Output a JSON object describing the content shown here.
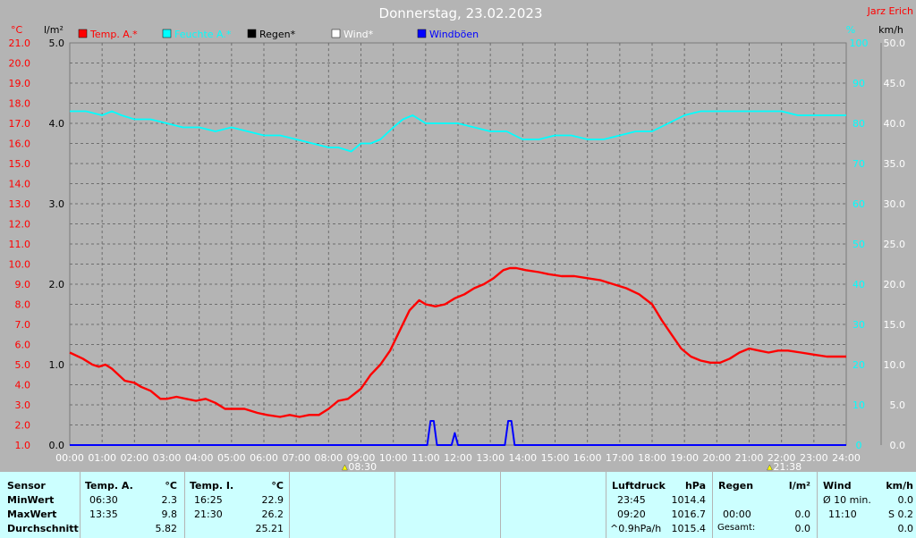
{
  "header": {
    "title": "Donnerstag, 23.02.2023",
    "station": "Jarz Erich"
  },
  "units": {
    "temp": "°C",
    "rain": "l/m²",
    "humidity": "%",
    "wind": "km/h"
  },
  "legend": [
    {
      "label": "Temp. A.*",
      "color": "#ff0000"
    },
    {
      "label": "Feuchte A.*",
      "color": "#00ffff"
    },
    {
      "label": "Regen*",
      "color": "#000000"
    },
    {
      "label": "Wind*",
      "color": "#ffffff"
    },
    {
      "label": "Windböen",
      "color": "#0000ff"
    }
  ],
  "axes": {
    "x_ticks": [
      "00:00",
      "01:00",
      "02:00",
      "03:00",
      "04:00",
      "05:00",
      "06:00",
      "07:00",
      "08:00",
      "09:00",
      "10:00",
      "11:00",
      "12:00",
      "13:00",
      "14:00",
      "15:00",
      "16:00",
      "17:00",
      "18:00",
      "19:00",
      "20:00",
      "21:00",
      "22:00",
      "23:00",
      "24:00"
    ],
    "temp_ticks": [
      "1.0",
      "2.0",
      "3.0",
      "4.0",
      "5.0",
      "6.0",
      "7.0",
      "8.0",
      "9.0",
      "10.0",
      "11.0",
      "12.0",
      "13.0",
      "14.0",
      "15.0",
      "16.0",
      "17.0",
      "18.0",
      "19.0",
      "20.0",
      "21.0"
    ],
    "rain_ticks": [
      "0.0",
      "1.0",
      "2.0",
      "3.0",
      "4.0",
      "5.0"
    ],
    "hum_ticks": [
      "0",
      "10",
      "20",
      "30",
      "40",
      "50",
      "60",
      "70",
      "80",
      "90",
      "100"
    ],
    "wind_ticks": [
      "0.0",
      "5.0",
      "10.0",
      "15.0",
      "20.0",
      "25.0",
      "30.0",
      "35.0",
      "40.0",
      "45.0",
      "50.0"
    ],
    "sunrise": "08:30",
    "sunset": "21:38"
  },
  "chart_data": {
    "type": "line",
    "title": "Donnerstag, 23.02.2023",
    "x_unit": "hour",
    "xlim": [
      0,
      24
    ],
    "ylim_temp": [
      1,
      21
    ],
    "ylim_rain": [
      0,
      5
    ],
    "ylim_hum": [
      0,
      100
    ],
    "ylim_wind": [
      0,
      50
    ],
    "grid": true,
    "series": [
      {
        "name": "Temp. A.*",
        "unit": "°C",
        "color": "#ff0000",
        "x": [
          0,
          0.4,
          0.7,
          0.9,
          1.1,
          1.3,
          1.5,
          1.7,
          2.0,
          2.2,
          2.5,
          2.8,
          3.0,
          3.3,
          3.6,
          3.9,
          4.2,
          4.5,
          4.8,
          5.1,
          5.4,
          5.8,
          6.1,
          6.5,
          6.8,
          7.1,
          7.4,
          7.7,
          8.0,
          8.3,
          8.6,
          9.0,
          9.3,
          9.6,
          9.9,
          10.2,
          10.5,
          10.8,
          11.0,
          11.3,
          11.6,
          11.9,
          12.2,
          12.5,
          12.8,
          13.1,
          13.4,
          13.6,
          13.8,
          14.1,
          14.5,
          14.8,
          15.2,
          15.6,
          16.0,
          16.4,
          16.8,
          17.2,
          17.6,
          18.0,
          18.3,
          18.6,
          18.9,
          19.2,
          19.5,
          19.8,
          20.1,
          20.4,
          20.7,
          21.0,
          21.3,
          21.6,
          21.9,
          22.2,
          22.6,
          23.0,
          23.4,
          23.7,
          24.0
        ],
        "values": [
          5.6,
          5.3,
          5.0,
          4.9,
          5.0,
          4.8,
          4.5,
          4.2,
          4.1,
          3.9,
          3.7,
          3.3,
          3.3,
          3.4,
          3.3,
          3.2,
          3.3,
          3.1,
          2.8,
          2.8,
          2.8,
          2.6,
          2.5,
          2.4,
          2.5,
          2.4,
          2.5,
          2.5,
          2.8,
          3.2,
          3.3,
          3.8,
          4.5,
          5.0,
          5.7,
          6.7,
          7.7,
          8.2,
          8.0,
          7.9,
          8.0,
          8.3,
          8.5,
          8.8,
          9.0,
          9.3,
          9.7,
          9.8,
          9.8,
          9.7,
          9.6,
          9.5,
          9.4,
          9.4,
          9.3,
          9.2,
          9.0,
          8.8,
          8.5,
          8.0,
          7.2,
          6.5,
          5.8,
          5.4,
          5.2,
          5.1,
          5.1,
          5.3,
          5.6,
          5.8,
          5.7,
          5.6,
          5.7,
          5.7,
          5.6,
          5.5,
          5.4,
          5.4,
          5.4
        ]
      },
      {
        "name": "Feuchte A.*",
        "unit": "%",
        "color": "#00ffff",
        "x": [
          0,
          0.5,
          1.0,
          1.3,
          1.6,
          2.0,
          2.5,
          3.0,
          3.5,
          4.0,
          4.5,
          5.0,
          5.5,
          6.0,
          6.5,
          7.0,
          7.5,
          8.0,
          8.3,
          8.7,
          9.0,
          9.3,
          9.6,
          10.0,
          10.3,
          10.6,
          11.0,
          11.3,
          11.6,
          12.0,
          12.5,
          13.0,
          13.5,
          14.0,
          14.5,
          15.0,
          15.5,
          16.0,
          16.5,
          17.0,
          17.5,
          18.0,
          18.5,
          19.0,
          19.5,
          20.0,
          20.5,
          21.0,
          21.5,
          22.0,
          22.5,
          23.0,
          23.5,
          24.0
        ],
        "values": [
          83,
          83,
          82,
          83,
          82,
          81,
          81,
          80,
          79,
          79,
          78,
          79,
          78,
          77,
          77,
          76,
          75,
          74,
          74,
          73,
          75,
          75,
          76,
          79,
          81,
          82,
          80,
          80,
          80,
          80,
          79,
          78,
          78,
          76,
          76,
          77,
          77,
          76,
          76,
          77,
          78,
          78,
          80,
          82,
          83,
          83,
          83,
          83,
          83,
          83,
          82,
          82,
          82,
          82
        ]
      },
      {
        "name": "Windböen",
        "unit": "km/h",
        "color": "#0000ff",
        "x": [
          0,
          11.05,
          11.15,
          11.25,
          11.35,
          11.8,
          11.9,
          12.0,
          13.45,
          13.55,
          13.65,
          13.75,
          24
        ],
        "values": [
          0,
          0,
          3,
          3,
          0,
          0,
          1.5,
          0,
          0,
          3,
          3,
          0,
          0
        ]
      }
    ]
  },
  "stats": {
    "sensor": {
      "h1": "Sensor",
      "min": "MinWert",
      "max": "MaxWert",
      "avg": "Durchschnitt"
    },
    "temp_a": {
      "h1": "Temp. A.",
      "h2": "°C",
      "min_t": "06:30",
      "min_v": "2.3",
      "max_t": "13:35",
      "max_v": "9.8",
      "avg_v": "5.82"
    },
    "temp_i": {
      "h1": "Temp. I.",
      "h2": "°C",
      "min_t": "16:25",
      "min_v": "22.9",
      "max_t": "21:30",
      "max_v": "26.2",
      "avg_v": "25.21"
    },
    "pressure": {
      "h1": "Luftdruck",
      "h2": "hPa",
      "r1_t": "23:45",
      "r1_v": "1014.4",
      "r2_t": "09:20",
      "r2_v": "1016.7",
      "r3_t": "^0.9hPa/h",
      "r3_v": "1015.4"
    },
    "rain": {
      "h1": "Regen",
      "h2": "l/m²",
      "r2_t": "00:00",
      "r2_v": "0.0",
      "r3_t": "Gesamt:",
      "r3_v": "0.0"
    },
    "wind": {
      "h1": "Wind",
      "h2": "km/h",
      "r1_t": "Ø 10 min.",
      "r1_v": "0.0",
      "r2_t": "11:10",
      "r2_v": "S 0.2",
      "r3_v": "0.0"
    }
  }
}
